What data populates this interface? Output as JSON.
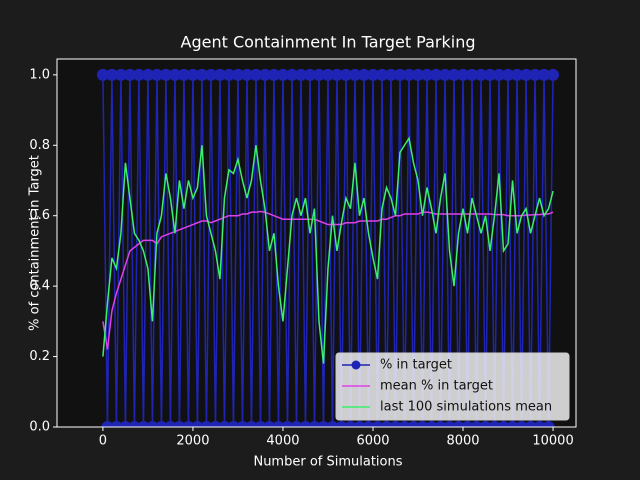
{
  "chart_data": {
    "type": "line",
    "title": "Agent Containment In Target Parking",
    "x_label": "Number of Simulations",
    "y_label": "% of containment in Target",
    "xlim": [
      -1020,
      10510
    ],
    "ylim": [
      0,
      1.045
    ],
    "xticks": [
      0,
      2000,
      4000,
      6000,
      8000,
      10000
    ],
    "yticks": [
      {
        "value": 0,
        "label": "0.0"
      },
      0.2,
      0.4,
      0.6,
      0.8,
      {
        "value": 1,
        "label": "1.0"
      }
    ],
    "grid": false,
    "legend": "lower right",
    "x": [
      0,
      100,
      200,
      300,
      400,
      500,
      600,
      700,
      800,
      900,
      1000,
      1100,
      1200,
      1300,
      1400,
      1500,
      1600,
      1700,
      1800,
      1900,
      2000,
      2100,
      2200,
      2300,
      2400,
      2500,
      2600,
      2700,
      2800,
      2900,
      3000,
      3100,
      3200,
      3300,
      3400,
      3500,
      3600,
      3700,
      3800,
      3900,
      4000,
      4100,
      4200,
      4300,
      4400,
      4500,
      4600,
      4700,
      4800,
      4900,
      5000,
      5100,
      5200,
      5300,
      5400,
      5500,
      5600,
      5700,
      5800,
      5900,
      6000,
      6100,
      6200,
      6300,
      6400,
      6500,
      6600,
      6700,
      6800,
      6900,
      7000,
      7100,
      7200,
      7300,
      7400,
      7500,
      7600,
      7700,
      7800,
      7900,
      8000,
      8100,
      8200,
      8300,
      8400,
      8500,
      8600,
      8700,
      8800,
      8900,
      9000,
      9100,
      9200,
      9300,
      9400,
      9500,
      9600,
      9700,
      9800,
      9900,
      10000
    ],
    "series": [
      {
        "name": "% in target",
        "color": "#1f24b4",
        "markers": true,
        "values": [
          1,
          0,
          1,
          0,
          1,
          0,
          1,
          0,
          1,
          0,
          1,
          0,
          1,
          0,
          1,
          0,
          1,
          0,
          1,
          0,
          1,
          0,
          1,
          0,
          1,
          0,
          1,
          0,
          1,
          0,
          1,
          0,
          1,
          0,
          1,
          0,
          1,
          0,
          1,
          0,
          1,
          0,
          1,
          0,
          1,
          0,
          1,
          0,
          1,
          0,
          1,
          0,
          1,
          0,
          1,
          0,
          1,
          0,
          1,
          0,
          1,
          0,
          1,
          0,
          1,
          0,
          1,
          0,
          1,
          0,
          1,
          0,
          1,
          0,
          1,
          0,
          1,
          0,
          1,
          0,
          1,
          0,
          1,
          0,
          1,
          0,
          1,
          0,
          1,
          0,
          1,
          0,
          1,
          0,
          1,
          0,
          1,
          0,
          1,
          0,
          1
        ]
      },
      {
        "name": "mean % in target",
        "color": "#e040e8",
        "markers": false,
        "values": [
          0.3,
          0.22,
          0.33,
          0.38,
          0.42,
          0.46,
          0.5,
          0.51,
          0.52,
          0.53,
          0.53,
          0.53,
          0.52,
          0.54,
          0.545,
          0.55,
          0.555,
          0.56,
          0.565,
          0.57,
          0.575,
          0.58,
          0.585,
          0.585,
          0.58,
          0.585,
          0.59,
          0.595,
          0.6,
          0.6,
          0.6,
          0.605,
          0.605,
          0.61,
          0.61,
          0.612,
          0.61,
          0.605,
          0.6,
          0.595,
          0.59,
          0.59,
          0.59,
          0.59,
          0.59,
          0.59,
          0.59,
          0.59,
          0.585,
          0.58,
          0.575,
          0.575,
          0.575,
          0.575,
          0.58,
          0.58,
          0.58,
          0.585,
          0.585,
          0.585,
          0.585,
          0.585,
          0.59,
          0.59,
          0.595,
          0.6,
          0.6,
          0.605,
          0.605,
          0.605,
          0.605,
          0.61,
          0.61,
          0.608,
          0.605,
          0.605,
          0.605,
          0.605,
          0.605,
          0.605,
          0.605,
          0.605,
          0.605,
          0.605,
          0.605,
          0.605,
          0.605,
          0.603,
          0.603,
          0.603,
          0.6,
          0.6,
          0.6,
          0.6,
          0.602,
          0.602,
          0.603,
          0.603,
          0.605,
          0.605,
          0.61
        ]
      },
      {
        "name": "last 100 simulations mean",
        "color": "#3cef6c",
        "markers": false,
        "values": [
          0.2,
          0.35,
          0.48,
          0.45,
          0.55,
          0.75,
          0.65,
          0.55,
          0.53,
          0.5,
          0.45,
          0.3,
          0.55,
          0.6,
          0.72,
          0.65,
          0.55,
          0.7,
          0.62,
          0.7,
          0.65,
          0.68,
          0.8,
          0.6,
          0.55,
          0.5,
          0.42,
          0.65,
          0.73,
          0.72,
          0.76,
          0.7,
          0.65,
          0.7,
          0.8,
          0.7,
          0.62,
          0.5,
          0.55,
          0.4,
          0.3,
          0.45,
          0.6,
          0.65,
          0.6,
          0.65,
          0.55,
          0.62,
          0.3,
          0.18,
          0.45,
          0.6,
          0.5,
          0.58,
          0.65,
          0.62,
          0.75,
          0.6,
          0.65,
          0.55,
          0.48,
          0.42,
          0.62,
          0.68,
          0.65,
          0.6,
          0.78,
          0.8,
          0.82,
          0.75,
          0.7,
          0.6,
          0.68,
          0.62,
          0.55,
          0.65,
          0.72,
          0.5,
          0.4,
          0.55,
          0.62,
          0.55,
          0.65,
          0.6,
          0.55,
          0.6,
          0.5,
          0.6,
          0.72,
          0.5,
          0.52,
          0.7,
          0.55,
          0.6,
          0.62,
          0.55,
          0.6,
          0.65,
          0.6,
          0.62,
          0.67
        ]
      }
    ]
  }
}
